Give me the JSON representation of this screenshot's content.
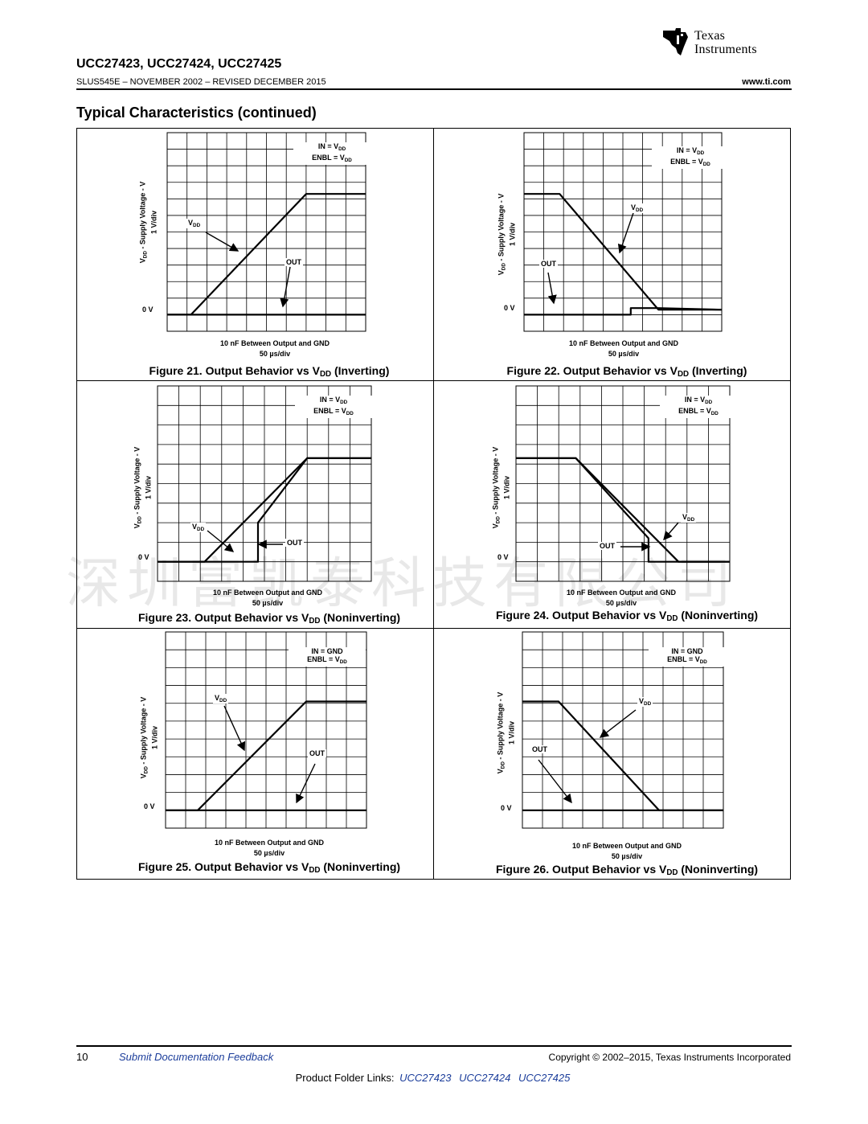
{
  "header": {
    "brand_line1": "Texas",
    "brand_line2": "Instruments",
    "doc_title": "UCC27423, UCC27424, UCC27425",
    "doc_subtitle": "SLUS545E – NOVEMBER 2002 – REVISED DECEMBER 2015",
    "url": "www.ti.com"
  },
  "section_title": "Typical Characteristics (continued)",
  "common": {
    "ylabel_line1": "VDD - Supply Voltage - V",
    "ylabel_line2": "1 V/div",
    "zero_label": "0 V",
    "xlabel_line1": "10 nF Between Output and GND",
    "xlabel_line2": "50 µs/div",
    "vdd_label": "VDD",
    "out_label": "OUT"
  },
  "figures": [
    {
      "caption": "Figure 21. Output Behavior vs VDD (Inverting)",
      "cond1": "IN = VDD",
      "cond2": "ENBL = VDD"
    },
    {
      "caption": "Figure 22. Output Behavior vs VDD (Inverting)",
      "cond1": "IN = VDD",
      "cond2": "ENBL = VDD"
    },
    {
      "caption": "Figure 23. Output Behavior vs VDD (Noninverting)",
      "cond1": "IN = VDD",
      "cond2": "ENBL = VDD"
    },
    {
      "caption": "Figure 24. Output Behavior vs VDD (Noninverting)",
      "cond1": "IN = VDD",
      "cond2": "ENBL = VDD"
    },
    {
      "caption": "Figure 25. Output Behavior vs VDD (Noninverting)",
      "cond1": "IN = GND",
      "cond2": "ENBL = VDD"
    },
    {
      "caption": "Figure 26. Output Behavior vs VDD (Noninverting)",
      "cond1": "IN = GND",
      "cond2": "ENBL = VDD"
    }
  ],
  "chart_data": [
    {
      "type": "line",
      "title": "Figure 21. Output Behavior vs VDD (Inverting)",
      "xlabel": "10 nF Between Output and GND, 50 µs/div",
      "ylabel": "VDD - Supply Voltage - V (1 V/div)",
      "x_divisions": 10,
      "y_divisions": 12,
      "ylim": [
        -1,
        11
      ],
      "series": [
        {
          "name": "VDD",
          "x": [
            0,
            1.2,
            7.0,
            10
          ],
          "y": [
            0,
            0,
            7.3,
            7.3
          ]
        },
        {
          "name": "OUT",
          "x": [
            0,
            10
          ],
          "y": [
            0,
            0
          ]
        }
      ]
    },
    {
      "type": "line",
      "title": "Figure 22. Output Behavior vs VDD (Inverting)",
      "xlabel": "10 nF Between Output and GND, 50 µs/div",
      "ylabel": "VDD - Supply Voltage - V (1 V/div)",
      "x_divisions": 10,
      "y_divisions": 12,
      "ylim": [
        -1,
        11
      ],
      "series": [
        {
          "name": "VDD",
          "x": [
            0,
            1.8,
            6.8,
            10
          ],
          "y": [
            7.3,
            7.3,
            0.3,
            0.3
          ]
        },
        {
          "name": "OUT",
          "x": [
            0,
            5.4,
            5.4,
            6.8,
            10
          ],
          "y": [
            0,
            0,
            0.4,
            0.4,
            0.3
          ]
        }
      ]
    },
    {
      "type": "line",
      "title": "Figure 23. Output Behavior vs VDD (Noninverting)",
      "xlabel": "10 nF Between Output and GND, 50 µs/div",
      "ylabel": "VDD - Supply Voltage - V (1 V/div)",
      "x_divisions": 10,
      "y_divisions": 10,
      "ylim": [
        -1,
        9
      ],
      "series": [
        {
          "name": "VDD",
          "x": [
            0,
            2.2,
            7.0,
            10
          ],
          "y": [
            0,
            0,
            5.3,
            5.3
          ]
        },
        {
          "name": "OUT",
          "x": [
            0,
            4.7,
            4.7,
            7.0,
            10
          ],
          "y": [
            0,
            0,
            2.0,
            5.3,
            5.3
          ]
        }
      ]
    },
    {
      "type": "line",
      "title": "Figure 24. Output Behavior vs VDD (Noninverting)",
      "xlabel": "10 nF Between Output and GND, 50 µs/div",
      "ylabel": "VDD - Supply Voltage - V (1 V/div)",
      "x_divisions": 10,
      "y_divisions": 10,
      "ylim": [
        -1,
        9
      ],
      "series": [
        {
          "name": "VDD",
          "x": [
            0,
            2.8,
            7.6,
            10
          ],
          "y": [
            5.3,
            5.3,
            0,
            0
          ]
        },
        {
          "name": "OUT",
          "x": [
            0,
            2.8,
            6.2,
            6.2,
            10
          ],
          "y": [
            5.3,
            5.3,
            1.2,
            0,
            0
          ]
        }
      ]
    },
    {
      "type": "line",
      "title": "Figure 25. Output Behavior vs VDD (Noninverting)",
      "xlabel": "10 nF Between Output and GND, 50 µs/div",
      "ylabel": "VDD - Supply Voltage - V (1 V/div)",
      "x_divisions": 10,
      "y_divisions": 11,
      "ylim": [
        -1,
        10
      ],
      "series": [
        {
          "name": "VDD",
          "x": [
            0,
            1.6,
            7.0,
            10
          ],
          "y": [
            0,
            0,
            6.1,
            6.1
          ]
        },
        {
          "name": "OUT",
          "x": [
            0,
            10
          ],
          "y": [
            0,
            0
          ]
        }
      ]
    },
    {
      "type": "line",
      "title": "Figure 26. Output Behavior vs VDD (Noninverting)",
      "xlabel": "10 nF Between Output and GND, 50 µs/div",
      "ylabel": "VDD - Supply Voltage - V (1 V/div)",
      "x_divisions": 10,
      "y_divisions": 11,
      "ylim": [
        -1,
        10
      ],
      "series": [
        {
          "name": "VDD",
          "x": [
            0,
            1.8,
            6.8,
            10
          ],
          "y": [
            6.1,
            6.1,
            0,
            0
          ]
        },
        {
          "name": "OUT",
          "x": [
            0,
            10
          ],
          "y": [
            0,
            0
          ]
        }
      ]
    }
  ],
  "watermark": "深圳富凯泰科技有限公司",
  "footer": {
    "page_number": "10",
    "feedback": "Submit Documentation Feedback",
    "copyright": "Copyright © 2002–2015, Texas Instruments Incorporated",
    "links_label": "Product Folder Links:",
    "links": [
      "UCC27423",
      "UCC27424",
      "UCC27425"
    ]
  }
}
